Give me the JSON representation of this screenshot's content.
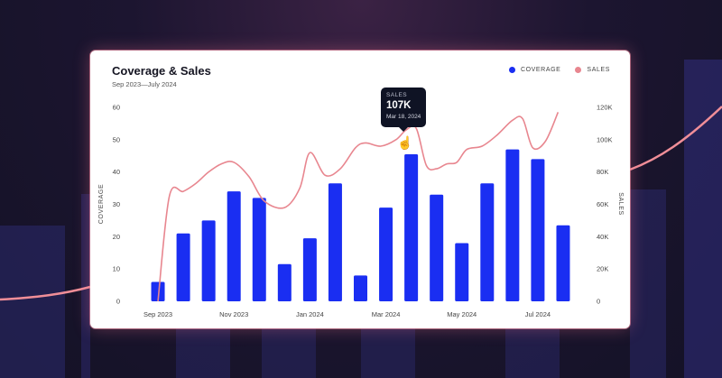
{
  "card": {
    "title": "Coverage & Sales",
    "subtitle": "Sep 2023—July 2024"
  },
  "legend": {
    "coverage_label": "COVERAGE",
    "sales_label": "SALES",
    "coverage_color": "#1a2ef2",
    "sales_color": "#e8868f"
  },
  "tooltip": {
    "label": "SALES",
    "value": "107K",
    "date": "Mar 18, 2024"
  },
  "chart_data": {
    "type": "bar",
    "title": "Coverage & Sales",
    "subtitle": "Sep 2023—July 2024",
    "ylabel": "COVERAGE",
    "y2label": "SALES",
    "ylim": [
      0,
      60
    ],
    "y2lim": [
      0,
      120000
    ],
    "yticks": [
      "0",
      "10",
      "20",
      "30",
      "40",
      "50",
      "60"
    ],
    "y2ticks": [
      "0",
      "20K",
      "40K",
      "60K",
      "80K",
      "100K",
      "120K"
    ],
    "xticks": [
      "Sep 2023",
      "Nov 2023",
      "Jan 2024",
      "Mar 2024",
      "May 2024",
      "Jul 2024"
    ],
    "bar_series": {
      "name": "COVERAGE",
      "values": [
        6,
        21,
        25,
        34,
        32,
        11.5,
        19.5,
        36.5,
        8,
        29,
        45.5,
        33,
        18,
        36.5,
        47,
        44,
        23.5
      ]
    },
    "line_series": {
      "name": "SALES",
      "x_bar_index": [
        0,
        0.45,
        1,
        1.5,
        2,
        2.5,
        3,
        3.6,
        4.2,
        5,
        5.6,
        6,
        6.6,
        7.2,
        7.8,
        8.2,
        8.8,
        9.4,
        9.8,
        10.2,
        10.6,
        11,
        11.4,
        11.8,
        12.2,
        12.8,
        13.4,
        14,
        14.4,
        14.8,
        15.3,
        15.8
      ],
      "values": [
        0,
        65000,
        68000,
        73000,
        80000,
        85000,
        86000,
        77000,
        62000,
        58000,
        70000,
        92000,
        78000,
        82000,
        95000,
        98000,
        96000,
        100000,
        106000,
        107000,
        84000,
        82000,
        85000,
        86000,
        94000,
        96000,
        103000,
        112000,
        113000,
        95000,
        99000,
        117000
      ]
    },
    "grid": false,
    "legend_position": "top-right"
  }
}
